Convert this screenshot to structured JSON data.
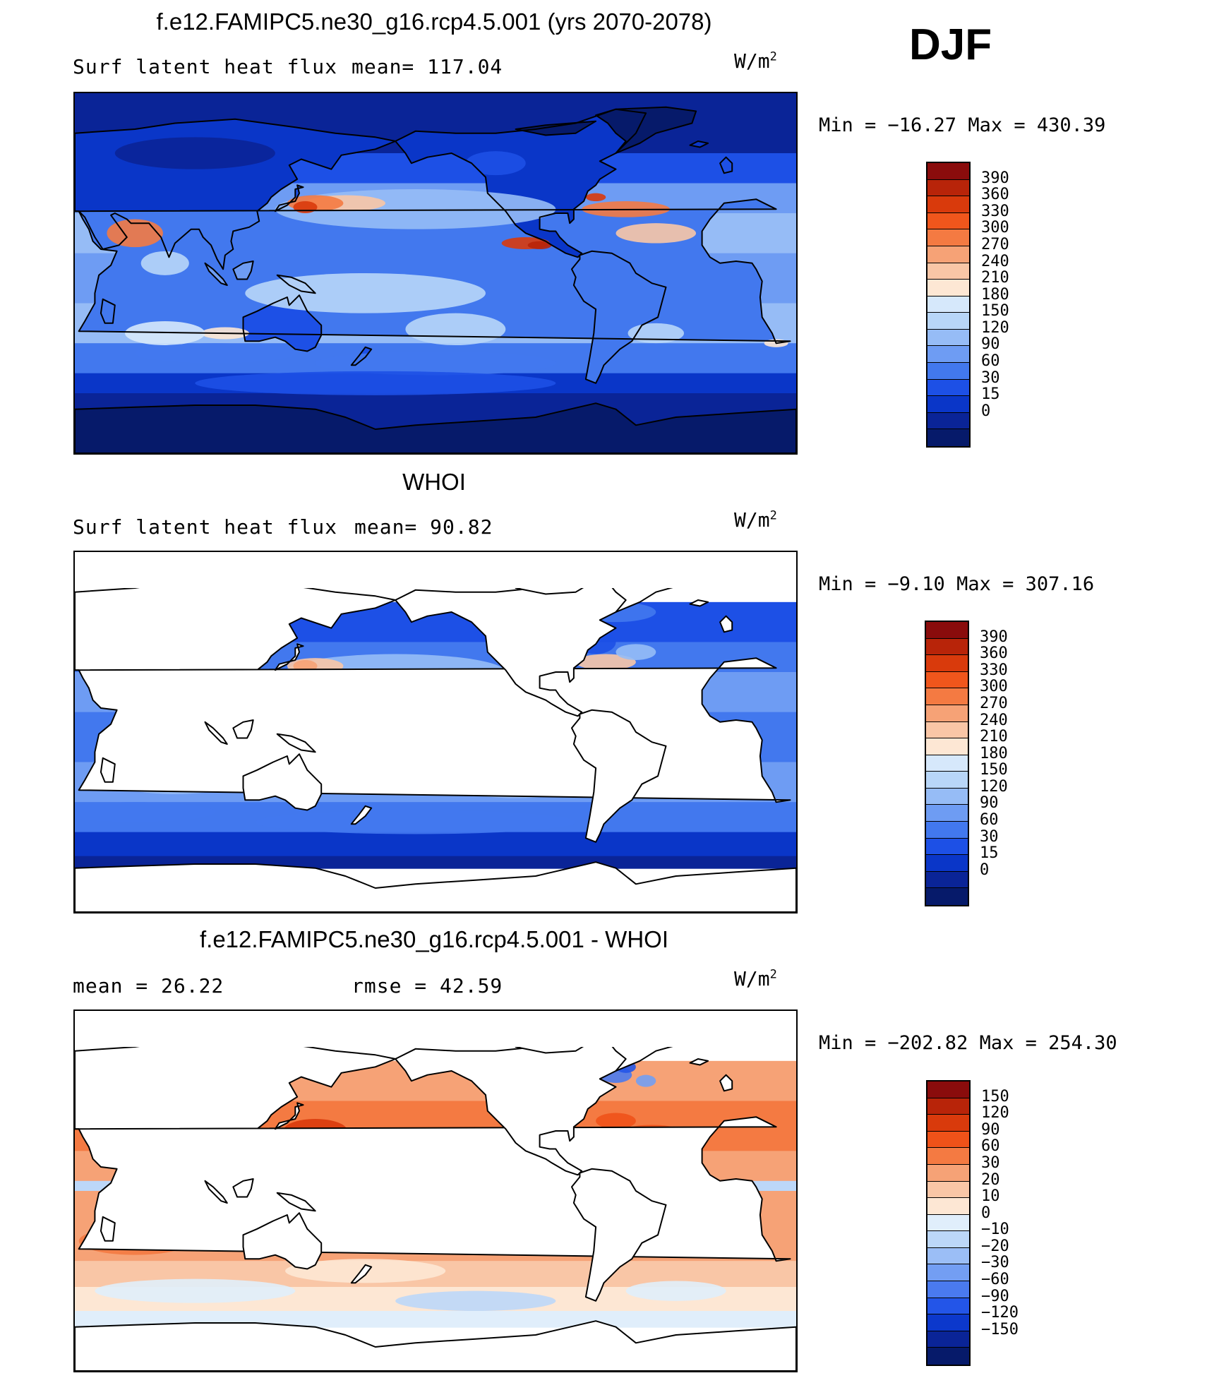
{
  "season": "DJF",
  "colors": {
    "full": [
      "#8a0c0c",
      "#b82409",
      "#d93a0c",
      "#f0561c",
      "#f47a42",
      "#f6a276",
      "#f9c6a6",
      "#fde7d4",
      "#d6e8fb",
      "#b8d6f8",
      "#96bcf6",
      "#6e9cf3",
      "#4278ee",
      "#1d50e6",
      "#0a36c8",
      "#0a2497",
      "#061a6a"
    ],
    "diff": [
      "#8a0c0c",
      "#b82409",
      "#d93a0c",
      "#ef5219",
      "#f47a42",
      "#f6a276",
      "#f9c6a6",
      "#fde7d4",
      "#e0eefb",
      "#bcd7f8",
      "#9bbef6",
      "#739ef3",
      "#4a7aef",
      "#2355e8",
      "#0c38cc",
      "#0a2497",
      "#061a6a"
    ],
    "land": "#ffffff",
    "coast": "#000000"
  },
  "panels": [
    {
      "kind": "model",
      "title": "f.e12.FAMIPC5.ne30_g16.rcp4.5.001 (yrs 2070-2078)",
      "left_label": "Surf latent heat flux",
      "right_label": "mean= 117.04",
      "units": "W/m",
      "units_sup": "2",
      "minmax": "Min = −16.27 Max = 430.39",
      "levels": [
        "390",
        "360",
        "330",
        "300",
        "270",
        "240",
        "210",
        "180",
        "150",
        "120",
        "90",
        "60",
        "30",
        "15",
        "0"
      ]
    },
    {
      "kind": "obs",
      "title": "WHOI",
      "left_label": "Surf latent heat flux",
      "right_label": "mean=  90.82",
      "units": "W/m",
      "units_sup": "2",
      "minmax": "Min =  −9.10 Max = 307.16",
      "levels": [
        "390",
        "360",
        "330",
        "300",
        "270",
        "240",
        "210",
        "180",
        "150",
        "120",
        "90",
        "60",
        "30",
        "15",
        "0"
      ]
    },
    {
      "kind": "diff",
      "title": "f.e12.FAMIPC5.ne30_g16.rcp4.5.001 - WHOI",
      "left_label": "mean =   26.22",
      "right_label": "rmse =   42.59",
      "units": "W/m",
      "units_sup": "2",
      "minmax": "Min = −202.82 Max = 254.30",
      "levels": [
        "150",
        "120",
        "90",
        "60",
        "30",
        "20",
        "10",
        "0",
        "−10",
        "−20",
        "−30",
        "−60",
        "−90",
        "−120",
        "−150"
      ]
    }
  ]
}
